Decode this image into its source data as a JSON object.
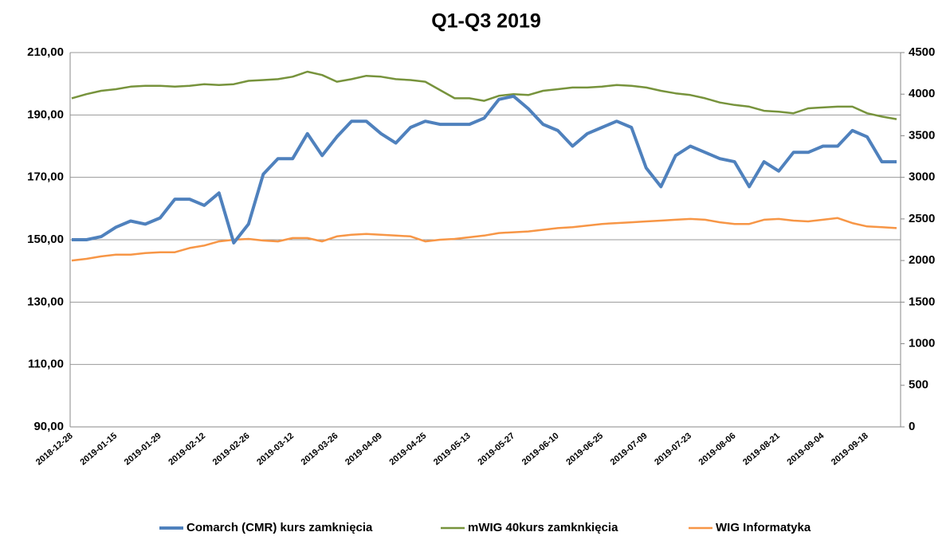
{
  "chart_data": {
    "type": "line",
    "title": "Q1-Q3 2019",
    "categories": [
      "2018-12-28",
      null,
      null,
      "2019-01-15",
      null,
      null,
      "2019-01-29",
      null,
      null,
      "2019-02-12",
      null,
      null,
      "2019-02-26",
      null,
      null,
      "2019-03-12",
      null,
      null,
      "2019-03-26",
      null,
      null,
      "2019-04-09",
      null,
      null,
      "2019-04-25",
      null,
      null,
      "2019-05-13",
      null,
      null,
      "2019-05-27",
      null,
      null,
      "2019-06-10",
      null,
      null,
      "2019-06-25",
      null,
      null,
      "2019-07-09",
      null,
      null,
      "2019-07-23",
      null,
      null,
      "2019-08-06",
      null,
      null,
      "2019-08-21",
      null,
      null,
      "2019-09-04",
      null,
      null,
      "2019-09-18",
      null,
      null
    ],
    "series": [
      {
        "name": "Comarch (CMR) kurs zamknięcia",
        "color": "#4f81bd",
        "axis": "y",
        "values": [
          150,
          150,
          151,
          154,
          156,
          155,
          157,
          163,
          163,
          161,
          165,
          149,
          155,
          171,
          176,
          176,
          184,
          177,
          183,
          188,
          188,
          184,
          181,
          186,
          188,
          187,
          187,
          187,
          189,
          195,
          196,
          192,
          187,
          185,
          180,
          184,
          186,
          188,
          186,
          173,
          167,
          177,
          180,
          178,
          176,
          175,
          167,
          175,
          172,
          178,
          178,
          180,
          180,
          185,
          183,
          175,
          175
        ]
      },
      {
        "name": "mWIG 40kurs zamknkięcia",
        "color": "#77933c",
        "axis": "y2",
        "values": [
          3950,
          4000,
          4040,
          4060,
          4090,
          4100,
          4100,
          4090,
          4100,
          4120,
          4110,
          4120,
          4160,
          4170,
          4180,
          4210,
          4270,
          4230,
          4150,
          4180,
          4220,
          4210,
          4180,
          4170,
          4150,
          4050,
          3950,
          3950,
          3920,
          3980,
          4000,
          3990,
          4040,
          4060,
          4080,
          4080,
          4090,
          4110,
          4100,
          4080,
          4040,
          4010,
          3990,
          3950,
          3900,
          3870,
          3850,
          3800,
          3790,
          3770,
          3830,
          3840,
          3850,
          3850,
          3770,
          3730,
          3700
        ]
      },
      {
        "name": "WIG Informatyka",
        "color": "#f79646",
        "axis": "y2",
        "values": [
          2000,
          2020,
          2050,
          2070,
          2070,
          2090,
          2100,
          2100,
          2150,
          2180,
          2230,
          2250,
          2260,
          2240,
          2230,
          2270,
          2270,
          2230,
          2290,
          2310,
          2320,
          2310,
          2300,
          2290,
          2230,
          2250,
          2260,
          2280,
          2300,
          2330,
          2340,
          2350,
          2370,
          2390,
          2400,
          2420,
          2440,
          2450,
          2460,
          2470,
          2480,
          2490,
          2500,
          2490,
          2460,
          2440,
          2440,
          2490,
          2500,
          2480,
          2470,
          2490,
          2510,
          2450,
          2410,
          2400,
          2390
        ]
      }
    ],
    "ylim": [
      90,
      210
    ],
    "yticks": [
      {
        "value": 90,
        "label": "90,00"
      },
      {
        "value": 110,
        "label": "110,00"
      },
      {
        "value": 130,
        "label": "130,00"
      },
      {
        "value": 150,
        "label": "150,00"
      },
      {
        "value": 170,
        "label": "170,00"
      },
      {
        "value": 190,
        "label": "190,00"
      },
      {
        "value": 210,
        "label": "210,00"
      }
    ],
    "y2lim": [
      0,
      4500
    ],
    "y2ticks": [
      0,
      500,
      1000,
      1500,
      2000,
      2500,
      3000,
      3500,
      4000,
      4500
    ],
    "grid": true,
    "legend": "bottom"
  }
}
